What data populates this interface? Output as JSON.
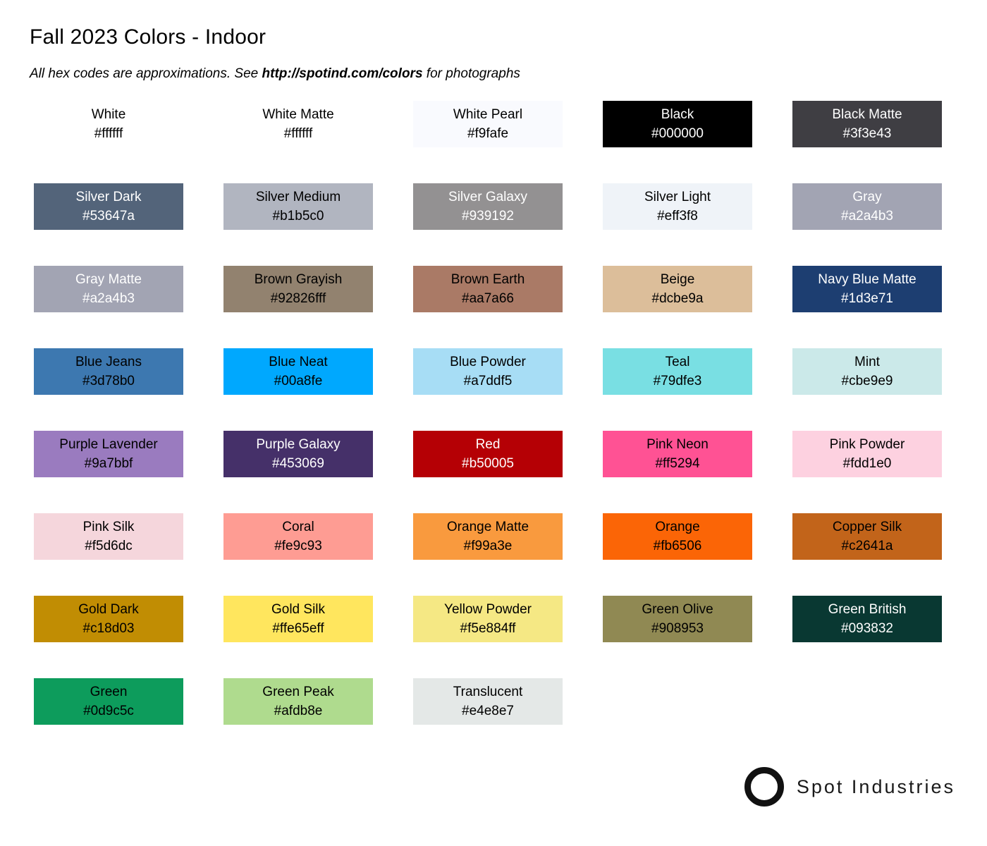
{
  "page": {
    "title": "Fall 2023 Colors - Indoor",
    "subtitle_prefix": "All hex codes are approximations. See ",
    "subtitle_link": "http://spotind.com/colors",
    "subtitle_suffix": " for photographs"
  },
  "swatches": [
    {
      "name": "White",
      "hex": "#ffffff",
      "bg": "#ffffff",
      "text": "#000000"
    },
    {
      "name": "White Matte",
      "hex": "#ffffff",
      "bg": "#ffffff",
      "text": "#000000"
    },
    {
      "name": "White Pearl",
      "hex": "#f9fafe",
      "bg": "#f9fafe",
      "text": "#000000"
    },
    {
      "name": "Black",
      "hex": "#000000",
      "bg": "#000000",
      "text": "#ffffff"
    },
    {
      "name": "Black Matte",
      "hex": "#3f3e43",
      "bg": "#3f3e43",
      "text": "#ffffff"
    },
    {
      "name": "Silver Dark",
      "hex": "#53647a",
      "bg": "#53647a",
      "text": "#ffffff"
    },
    {
      "name": "Silver Medium",
      "hex": "#b1b5c0",
      "bg": "#b1b5c0",
      "text": "#000000"
    },
    {
      "name": "Silver Galaxy",
      "hex": "#939192",
      "bg": "#939192",
      "text": "#ffffff"
    },
    {
      "name": "Silver Light",
      "hex": "#eff3f8",
      "bg": "#eff3f8",
      "text": "#000000"
    },
    {
      "name": "Gray",
      "hex": "#a2a4b3",
      "bg": "#a2a4b3",
      "text": "#ffffff"
    },
    {
      "name": "Gray Matte",
      "hex": "#a2a4b3",
      "bg": "#a2a4b3",
      "text": "#ffffff"
    },
    {
      "name": "Brown Grayish",
      "hex": "#92826fff",
      "bg": "#92826f",
      "text": "#000000"
    },
    {
      "name": "Brown Earth",
      "hex": "#aa7a66",
      "bg": "#aa7a66",
      "text": "#000000"
    },
    {
      "name": "Beige",
      "hex": "#dcbe9a",
      "bg": "#dcbe9a",
      "text": "#000000"
    },
    {
      "name": "Navy Blue Matte",
      "hex": "#1d3e71",
      "bg": "#1d3e71",
      "text": "#ffffff"
    },
    {
      "name": "Blue Jeans",
      "hex": "#3d78b0",
      "bg": "#3d78b0",
      "text": "#000000"
    },
    {
      "name": "Blue Neat",
      "hex": "#00a8fe",
      "bg": "#00a8fe",
      "text": "#000000"
    },
    {
      "name": "Blue Powder",
      "hex": "#a7ddf5",
      "bg": "#a7ddf5",
      "text": "#000000"
    },
    {
      "name": "Teal",
      "hex": "#79dfe3",
      "bg": "#79dfe3",
      "text": "#000000"
    },
    {
      "name": "Mint",
      "hex": "#cbe9e9",
      "bg": "#cbe9e9",
      "text": "#000000"
    },
    {
      "name": "Purple Lavender",
      "hex": "#9a7bbf",
      "bg": "#9a7bbf",
      "text": "#000000"
    },
    {
      "name": "Purple Galaxy",
      "hex": "#453069",
      "bg": "#453069",
      "text": "#ffffff"
    },
    {
      "name": "Red",
      "hex": "#b50005",
      "bg": "#b50005",
      "text": "#ffffff"
    },
    {
      "name": "Pink Neon",
      "hex": "#ff5294",
      "bg": "#ff5294",
      "text": "#000000"
    },
    {
      "name": "Pink Powder",
      "hex": "#fdd1e0",
      "bg": "#fdd1e0",
      "text": "#000000"
    },
    {
      "name": "Pink Silk",
      "hex": "#f5d6dc",
      "bg": "#f5d6dc",
      "text": "#000000"
    },
    {
      "name": "Coral",
      "hex": "#fe9c93",
      "bg": "#fe9c93",
      "text": "#000000"
    },
    {
      "name": "Orange Matte",
      "hex": "#f99a3e",
      "bg": "#f99a3e",
      "text": "#000000"
    },
    {
      "name": "Orange",
      "hex": "#fb6506",
      "bg": "#fb6506",
      "text": "#000000"
    },
    {
      "name": "Copper Silk",
      "hex": "#c2641a",
      "bg": "#c2641a",
      "text": "#000000"
    },
    {
      "name": "Gold Dark",
      "hex": "#c18d03",
      "bg": "#c18d03",
      "text": "#000000"
    },
    {
      "name": "Gold Silk",
      "hex": "#ffe65eff",
      "bg": "#ffe65e",
      "text": "#000000"
    },
    {
      "name": "Yellow Powder",
      "hex": "#f5e884ff",
      "bg": "#f5e884",
      "text": "#000000"
    },
    {
      "name": "Green Olive",
      "hex": "#908953",
      "bg": "#908953",
      "text": "#000000"
    },
    {
      "name": "Green British",
      "hex": "#093832",
      "bg": "#093832",
      "text": "#ffffff"
    },
    {
      "name": "Green",
      "hex": "#0d9c5c",
      "bg": "#0d9c5c",
      "text": "#000000"
    },
    {
      "name": "Green Peak",
      "hex": "#afdb8e",
      "bg": "#afdb8e",
      "text": "#000000"
    },
    {
      "name": "Translucent",
      "hex": "#e4e8e7",
      "bg": "#e4e8e7",
      "text": "#000000"
    }
  ],
  "footer": {
    "brand": "Spot Industries",
    "logo_icon": "circle-outline-icon",
    "logo_color": "#111111"
  }
}
